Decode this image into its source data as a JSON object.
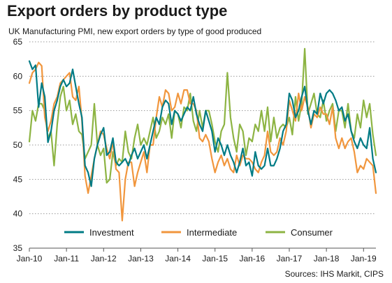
{
  "header": {
    "title": "Export orders by product type",
    "subtitle": "UK Manufacturing PMI, new export orders by type of good produced"
  },
  "footer": {
    "source": "Sources: IHS Markit, CIPS"
  },
  "chart_data": {
    "type": "line",
    "title": "Export orders by product type",
    "subtitle": "UK Manufacturing PMI, new export orders by type of good produced",
    "xlabel": "",
    "ylabel": "",
    "ylim": [
      35,
      65
    ],
    "yticks": [
      35,
      40,
      45,
      50,
      55,
      60,
      65
    ],
    "xlim": [
      "2010-01",
      "2019-05"
    ],
    "xticks": [
      "Jan-10",
      "Jan-11",
      "Jan-12",
      "Jan-13",
      "Jan-14",
      "Jan-15",
      "Jan-16",
      "Jan-17",
      "Jan-18",
      "Jan-19"
    ],
    "grid": "horizontal dotted",
    "legend_position": "bottom",
    "x": [
      "2010-01",
      "2010-02",
      "2010-03",
      "2010-04",
      "2010-05",
      "2010-06",
      "2010-07",
      "2010-08",
      "2010-09",
      "2010-10",
      "2010-11",
      "2010-12",
      "2011-01",
      "2011-02",
      "2011-03",
      "2011-04",
      "2011-05",
      "2011-06",
      "2011-07",
      "2011-08",
      "2011-09",
      "2011-10",
      "2011-11",
      "2011-12",
      "2012-01",
      "2012-02",
      "2012-03",
      "2012-04",
      "2012-05",
      "2012-06",
      "2012-07",
      "2012-08",
      "2012-09",
      "2012-10",
      "2012-11",
      "2012-12",
      "2013-01",
      "2013-02",
      "2013-03",
      "2013-04",
      "2013-05",
      "2013-06",
      "2013-07",
      "2013-08",
      "2013-09",
      "2013-10",
      "2013-11",
      "2013-12",
      "2014-01",
      "2014-02",
      "2014-03",
      "2014-04",
      "2014-05",
      "2014-06",
      "2014-07",
      "2014-08",
      "2014-09",
      "2014-10",
      "2014-11",
      "2014-12",
      "2015-01",
      "2015-02",
      "2015-03",
      "2015-04",
      "2015-05",
      "2015-06",
      "2015-07",
      "2015-08",
      "2015-09",
      "2015-10",
      "2015-11",
      "2015-12",
      "2016-01",
      "2016-02",
      "2016-03",
      "2016-04",
      "2016-05",
      "2016-06",
      "2016-07",
      "2016-08",
      "2016-09",
      "2016-10",
      "2016-11",
      "2016-12",
      "2017-01",
      "2017-02",
      "2017-03",
      "2017-04",
      "2017-05",
      "2017-06",
      "2017-07",
      "2017-08",
      "2017-09",
      "2017-10",
      "2017-11",
      "2017-12",
      "2018-01",
      "2018-02",
      "2018-03",
      "2018-04",
      "2018-05",
      "2018-06",
      "2018-07",
      "2018-08",
      "2018-09",
      "2018-10",
      "2018-11",
      "2018-12",
      "2019-01",
      "2019-02",
      "2019-03",
      "2019-04",
      "2019-05"
    ],
    "series": [
      {
        "name": "Investment",
        "color": "#007b85",
        "values": [
          62.2,
          61.0,
          61.6,
          55.5,
          59.0,
          57.0,
          50.4,
          52.0,
          55.0,
          56.5,
          58.5,
          59.5,
          58.5,
          59.0,
          61.0,
          58.5,
          56.0,
          54.0,
          47.0,
          46.0,
          44.0,
          48.0,
          50.0,
          51.5,
          52.5,
          48.5,
          49.0,
          51.0,
          47.5,
          47.0,
          47.5,
          48.0,
          47.0,
          48.5,
          49.5,
          48.0,
          49.0,
          50.0,
          48.0,
          50.0,
          52.0,
          54.0,
          53.0,
          55.5,
          56.5,
          56.0,
          53.0,
          55.0,
          54.5,
          53.5,
          54.5,
          55.5,
          55.0,
          57.0,
          54.5,
          53.0,
          52.0,
          55.0,
          53.5,
          52.0,
          49.0,
          51.0,
          50.0,
          48.5,
          50.0,
          48.5,
          47.5,
          46.0,
          47.5,
          49.5,
          47.0,
          47.5,
          45.5,
          49.0,
          47.0,
          46.5,
          47.0,
          49.5,
          47.0,
          47.0,
          48.0,
          49.5,
          52.0,
          53.0,
          57.5,
          56.5,
          54.0,
          55.0,
          57.0,
          58.5,
          55.0,
          53.0,
          55.0,
          54.5,
          57.5,
          56.0,
          57.5,
          58.0,
          57.5,
          56.5,
          55.0,
          55.5,
          53.5,
          54.5,
          52.0,
          50.5,
          49.5,
          51.0,
          50.0,
          49.5,
          52.5,
          48.0,
          46.0
        ]
      },
      {
        "name": "Intermediate",
        "color": "#f1963d",
        "values": [
          59.0,
          60.5,
          61.0,
          62.0,
          61.5,
          54.0,
          52.0,
          53.5,
          56.0,
          57.0,
          59.0,
          59.5,
          60.0,
          60.5,
          57.0,
          56.5,
          58.5,
          53.5,
          45.5,
          43.0,
          45.5,
          48.0,
          50.0,
          52.0,
          51.5,
          49.5,
          48.0,
          50.5,
          46.5,
          46.0,
          39.0,
          45.0,
          47.5,
          47.5,
          44.0,
          46.0,
          47.5,
          49.0,
          46.0,
          50.0,
          50.0,
          54.0,
          57.0,
          55.5,
          58.0,
          57.5,
          55.0,
          55.5,
          57.5,
          56.0,
          58.0,
          58.0,
          56.0,
          56.0,
          55.0,
          51.0,
          50.5,
          51.5,
          50.5,
          48.0,
          46.0,
          47.5,
          48.5,
          47.0,
          48.0,
          46.5,
          46.0,
          48.5,
          47.0,
          48.5,
          48.0,
          48.0,
          47.5,
          46.5,
          46.0,
          47.5,
          48.5,
          52.0,
          49.0,
          48.5,
          49.0,
          51.0,
          50.0,
          52.0,
          56.5,
          55.0,
          53.5,
          57.5,
          55.0,
          57.0,
          55.5,
          52.5,
          54.5,
          54.0,
          55.5,
          54.5,
          54.5,
          53.0,
          55.5,
          51.0,
          49.5,
          51.0,
          49.5,
          50.5,
          51.0,
          49.0,
          46.0,
          47.0,
          46.5,
          48.0,
          47.5,
          47.0,
          43.0
        ]
      },
      {
        "name": "Consumer",
        "color": "#8db443",
        "values": [
          50.5,
          55.0,
          53.5,
          56.0,
          56.0,
          55.0,
          51.0,
          52.0,
          47.0,
          53.0,
          57.0,
          58.5,
          55.0,
          56.5,
          53.0,
          54.5,
          52.0,
          51.5,
          48.0,
          49.0,
          50.0,
          56.0,
          50.0,
          48.5,
          49.5,
          44.5,
          45.0,
          49.0,
          47.0,
          48.0,
          47.5,
          52.0,
          49.0,
          48.0,
          51.0,
          53.0,
          50.0,
          51.0,
          50.0,
          52.0,
          54.0,
          51.0,
          52.0,
          54.0,
          53.0,
          54.5,
          51.0,
          55.0,
          54.5,
          52.5,
          55.5,
          55.0,
          57.5,
          53.5,
          52.0,
          55.0,
          52.5,
          55.0,
          55.0,
          53.0,
          50.5,
          49.0,
          52.0,
          53.0,
          60.5,
          54.0,
          51.0,
          49.0,
          53.0,
          52.0,
          48.5,
          51.0,
          50.5,
          53.0,
          52.0,
          55.0,
          52.0,
          55.5,
          50.5,
          54.0,
          51.0,
          52.5,
          53.0,
          52.5,
          54.0,
          51.5,
          57.0,
          53.5,
          56.0,
          64.0,
          54.5,
          56.0,
          57.5,
          54.5,
          54.0,
          56.5,
          53.5,
          55.0,
          56.0,
          52.0,
          55.0,
          55.0,
          52.5,
          56.0,
          52.0,
          51.0,
          54.5,
          52.5,
          56.5,
          54.0,
          56.0,
          51.5,
          48.5
        ]
      }
    ]
  }
}
